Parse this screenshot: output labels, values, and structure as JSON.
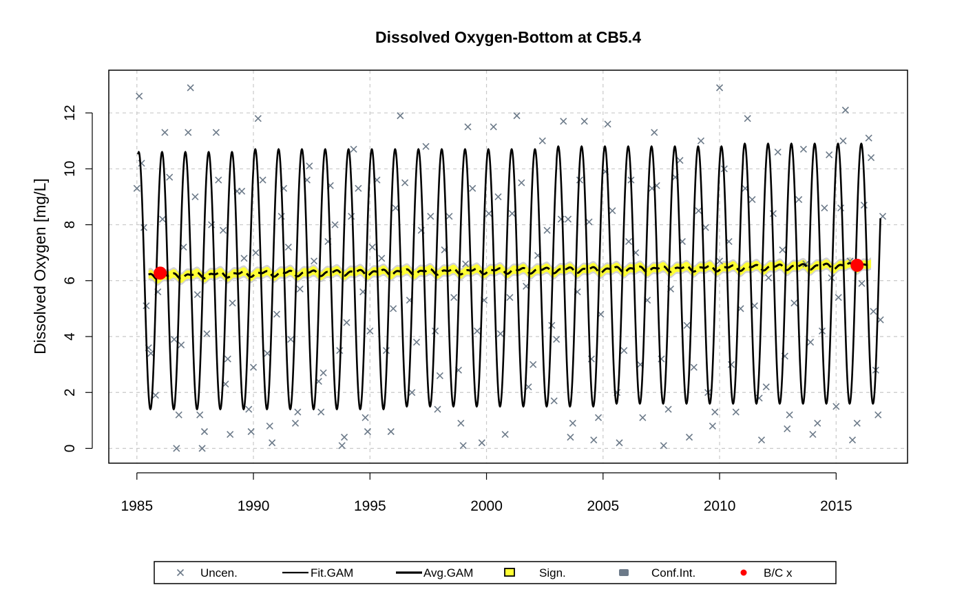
{
  "chart_data": {
    "type": "line",
    "title": "Dissolved Oxygen-Bottom at CB5.4",
    "xlabel": "",
    "ylabel": "Dissolved Oxygen [mg/L]",
    "xlim": [
      1985,
      2017
    ],
    "ylim": [
      0,
      13
    ],
    "x_ticks": [
      "1985",
      "1990",
      "1995",
      "2000",
      "2005",
      "2010",
      "2015"
    ],
    "y_ticks": [
      "0",
      "2",
      "4",
      "6",
      "8",
      "10",
      "12"
    ],
    "grid": true,
    "legend_position": "bottom",
    "colors": {
      "observations": "#6c7a89",
      "fit": "#000000",
      "significance": "#ffff33",
      "confidence": "#c8c8c8",
      "baseline_current": "#ff0000",
      "grid": "#c8c8c8"
    },
    "legend": [
      {
        "label": "Uncen.",
        "symbol": "x"
      },
      {
        "label": "Fit.GAM",
        "symbol": "line"
      },
      {
        "label": "Avg.GAM",
        "symbol": "thickline"
      },
      {
        "label": "Sign.",
        "symbol": "yellow-box"
      },
      {
        "label": "Conf.Int.",
        "symbol": "gray-box"
      },
      {
        "label": "B/C x",
        "symbol": "red-dot"
      }
    ],
    "series": [
      {
        "name": "Fit.GAM",
        "kind": "seasonal-curve",
        "x_start": 1985.05,
        "x_end": 2016.9,
        "peak_values": [
          10.6,
          10.6,
          10.6,
          10.6,
          10.6,
          10.7,
          10.7,
          10.7,
          10.7,
          10.7,
          10.7,
          10.7,
          10.7,
          10.7,
          10.7,
          10.7,
          10.7,
          10.7,
          10.8,
          10.8,
          10.8,
          10.8,
          10.8,
          10.8,
          10.8,
          10.8,
          10.9,
          10.9,
          10.9,
          10.9,
          10.9,
          10.9
        ],
        "trough_values": [
          1.4,
          1.4,
          1.4,
          1.4,
          1.4,
          1.4,
          1.4,
          1.4,
          1.4,
          1.4,
          1.4,
          1.5,
          1.5,
          1.5,
          1.5,
          1.5,
          1.5,
          1.5,
          1.5,
          1.5,
          1.6,
          1.6,
          1.6,
          1.6,
          1.6,
          1.6,
          1.6,
          1.6,
          1.6,
          1.6,
          1.6,
          1.6
        ]
      },
      {
        "name": "Avg.GAM",
        "kind": "trend",
        "x": [
          1985.5,
          1990,
          1995,
          2000,
          2005,
          2010,
          2016.5
        ],
        "y": [
          6.15,
          6.25,
          6.3,
          6.35,
          6.4,
          6.45,
          6.55
        ]
      }
    ],
    "baseline_current": [
      {
        "x": 1986.0,
        "y": 6.27
      },
      {
        "x": 2015.9,
        "y": 6.55
      }
    ],
    "observations": [
      [
        1985.1,
        12.6
      ],
      [
        1985.0,
        9.3
      ],
      [
        1985.2,
        10.2
      ],
      [
        1985.3,
        7.9
      ],
      [
        1985.4,
        5.1
      ],
      [
        1985.5,
        3.6
      ],
      [
        1985.6,
        3.4
      ],
      [
        1985.8,
        1.9
      ],
      [
        1985.9,
        5.6
      ],
      [
        1986.1,
        8.2
      ],
      [
        1986.2,
        11.3
      ],
      [
        1986.4,
        9.7
      ],
      [
        1986.6,
        3.9
      ],
      [
        1986.7,
        0.0
      ],
      [
        1986.8,
        1.2
      ],
      [
        1986.9,
        3.7
      ],
      [
        1987.0,
        7.2
      ],
      [
        1987.2,
        11.3
      ],
      [
        1987.3,
        12.9
      ],
      [
        1987.5,
        9.0
      ],
      [
        1987.6,
        5.5
      ],
      [
        1987.7,
        1.2
      ],
      [
        1987.8,
        0.0
      ],
      [
        1987.9,
        0.6
      ],
      [
        1988.0,
        4.1
      ],
      [
        1988.2,
        8.0
      ],
      [
        1988.4,
        11.3
      ],
      [
        1988.5,
        9.6
      ],
      [
        1988.7,
        7.8
      ],
      [
        1988.8,
        2.3
      ],
      [
        1988.9,
        3.2
      ],
      [
        1989.0,
        0.5
      ],
      [
        1989.1,
        5.2
      ],
      [
        1989.3,
        9.2
      ],
      [
        1989.5,
        9.2
      ],
      [
        1989.6,
        6.8
      ],
      [
        1989.8,
        1.4
      ],
      [
        1989.9,
        0.6
      ],
      [
        1990.0,
        2.9
      ],
      [
        1990.1,
        7.0
      ],
      [
        1990.2,
        11.8
      ],
      [
        1990.4,
        9.6
      ],
      [
        1990.6,
        3.4
      ],
      [
        1990.7,
        0.8
      ],
      [
        1990.8,
        0.2
      ],
      [
        1991.0,
        4.8
      ],
      [
        1991.2,
        8.3
      ],
      [
        1991.3,
        9.3
      ],
      [
        1991.5,
        7.2
      ],
      [
        1991.6,
        3.9
      ],
      [
        1991.8,
        0.9
      ],
      [
        1991.9,
        1.3
      ],
      [
        1992.0,
        5.7
      ],
      [
        1992.3,
        9.6
      ],
      [
        1992.4,
        10.1
      ],
      [
        1992.6,
        6.7
      ],
      [
        1992.8,
        2.4
      ],
      [
        1992.9,
        1.3
      ],
      [
        1993.0,
        2.7
      ],
      [
        1993.2,
        7.4
      ],
      [
        1993.3,
        9.4
      ],
      [
        1993.5,
        8.0
      ],
      [
        1993.7,
        3.5
      ],
      [
        1993.8,
        0.1
      ],
      [
        1993.9,
        0.4
      ],
      [
        1994.0,
        4.5
      ],
      [
        1994.2,
        8.3
      ],
      [
        1994.3,
        10.7
      ],
      [
        1994.5,
        9.3
      ],
      [
        1994.7,
        5.6
      ],
      [
        1994.8,
        1.1
      ],
      [
        1994.9,
        0.6
      ],
      [
        1995.0,
        4.2
      ],
      [
        1995.1,
        7.2
      ],
      [
        1995.3,
        9.6
      ],
      [
        1995.5,
        6.8
      ],
      [
        1995.7,
        3.5
      ],
      [
        1995.9,
        0.6
      ],
      [
        1996.0,
        5.0
      ],
      [
        1996.1,
        8.6
      ],
      [
        1996.3,
        11.9
      ],
      [
        1996.5,
        9.5
      ],
      [
        1996.7,
        5.3
      ],
      [
        1996.8,
        2.0
      ],
      [
        1997.0,
        3.8
      ],
      [
        1997.2,
        7.8
      ],
      [
        1997.4,
        10.8
      ],
      [
        1997.6,
        8.3
      ],
      [
        1997.8,
        4.2
      ],
      [
        1997.9,
        1.4
      ],
      [
        1998.0,
        2.6
      ],
      [
        1998.2,
        7.1
      ],
      [
        1998.4,
        8.3
      ],
      [
        1998.6,
        5.4
      ],
      [
        1998.8,
        2.8
      ],
      [
        1998.9,
        0.9
      ],
      [
        1999.0,
        0.1
      ],
      [
        1999.1,
        6.6
      ],
      [
        1999.2,
        11.5
      ],
      [
        1999.4,
        9.3
      ],
      [
        1999.6,
        4.2
      ],
      [
        1999.8,
        0.2
      ],
      [
        1999.9,
        5.3
      ],
      [
        2000.1,
        8.4
      ],
      [
        2000.3,
        11.5
      ],
      [
        2000.5,
        9.0
      ],
      [
        2000.6,
        4.1
      ],
      [
        2000.8,
        0.5
      ],
      [
        2001.0,
        5.4
      ],
      [
        2001.1,
        8.4
      ],
      [
        2001.3,
        11.9
      ],
      [
        2001.5,
        9.5
      ],
      [
        2001.7,
        5.8
      ],
      [
        2001.8,
        2.2
      ],
      [
        2002.0,
        3.0
      ],
      [
        2002.2,
        6.9
      ],
      [
        2002.4,
        11.0
      ],
      [
        2002.6,
        7.8
      ],
      [
        2002.8,
        4.4
      ],
      [
        2002.9,
        1.7
      ],
      [
        2003.0,
        3.9
      ],
      [
        2003.2,
        8.2
      ],
      [
        2003.3,
        11.7
      ],
      [
        2003.5,
        8.2
      ],
      [
        2003.6,
        0.4
      ],
      [
        2003.7,
        0.9
      ],
      [
        2003.9,
        5.6
      ],
      [
        2004.0,
        9.6
      ],
      [
        2004.2,
        11.7
      ],
      [
        2004.4,
        8.1
      ],
      [
        2004.5,
        3.2
      ],
      [
        2004.6,
        0.3
      ],
      [
        2004.8,
        1.1
      ],
      [
        2004.9,
        4.8
      ],
      [
        2005.1,
        9.9
      ],
      [
        2005.2,
        11.6
      ],
      [
        2005.4,
        8.5
      ],
      [
        2005.6,
        2.0
      ],
      [
        2005.7,
        0.2
      ],
      [
        2005.9,
        3.5
      ],
      [
        2006.1,
        7.4
      ],
      [
        2006.2,
        9.6
      ],
      [
        2006.4,
        7.0
      ],
      [
        2006.6,
        3.0
      ],
      [
        2006.7,
        1.1
      ],
      [
        2006.9,
        5.3
      ],
      [
        2007.1,
        9.3
      ],
      [
        2007.2,
        11.3
      ],
      [
        2007.3,
        9.4
      ],
      [
        2007.5,
        3.2
      ],
      [
        2007.6,
        0.1
      ],
      [
        2007.8,
        1.4
      ],
      [
        2007.9,
        5.7
      ],
      [
        2008.1,
        9.7
      ],
      [
        2008.3,
        10.3
      ],
      [
        2008.4,
        7.4
      ],
      [
        2008.6,
        4.4
      ],
      [
        2008.7,
        0.4
      ],
      [
        2008.9,
        2.9
      ],
      [
        2009.1,
        8.5
      ],
      [
        2009.2,
        11.0
      ],
      [
        2009.4,
        7.9
      ],
      [
        2009.5,
        2.0
      ],
      [
        2009.7,
        0.8
      ],
      [
        2009.8,
        1.3
      ],
      [
        2010.0,
        6.7
      ],
      [
        2010.0,
        12.9
      ],
      [
        2010.2,
        10.0
      ],
      [
        2010.4,
        7.4
      ],
      [
        2010.5,
        3.0
      ],
      [
        2010.7,
        1.3
      ],
      [
        2010.9,
        5.0
      ],
      [
        2011.1,
        9.3
      ],
      [
        2011.2,
        11.8
      ],
      [
        2011.4,
        8.9
      ],
      [
        2011.5,
        5.1
      ],
      [
        2011.7,
        1.8
      ],
      [
        2011.8,
        0.3
      ],
      [
        2012.0,
        2.2
      ],
      [
        2012.1,
        6.1
      ],
      [
        2012.3,
        8.4
      ],
      [
        2012.5,
        10.6
      ],
      [
        2012.7,
        7.1
      ],
      [
        2012.8,
        3.3
      ],
      [
        2012.9,
        0.7
      ],
      [
        2013.0,
        1.2
      ],
      [
        2013.2,
        5.2
      ],
      [
        2013.4,
        8.9
      ],
      [
        2013.6,
        10.7
      ],
      [
        2013.7,
        6.6
      ],
      [
        2013.9,
        3.8
      ],
      [
        2014.0,
        0.5
      ],
      [
        2014.2,
        0.9
      ],
      [
        2014.4,
        4.2
      ],
      [
        2014.5,
        8.6
      ],
      [
        2014.7,
        10.5
      ],
      [
        2014.8,
        6.1
      ],
      [
        2015.0,
        1.5
      ],
      [
        2015.1,
        5.4
      ],
      [
        2015.2,
        8.6
      ],
      [
        2015.3,
        11.0
      ],
      [
        2015.4,
        12.1
      ],
      [
        2015.6,
        6.7
      ],
      [
        2015.7,
        0.3
      ],
      [
        2015.9,
        0.9
      ],
      [
        2016.1,
        5.9
      ],
      [
        2016.2,
        8.7
      ],
      [
        2016.4,
        11.1
      ],
      [
        2016.5,
        10.4
      ],
      [
        2016.6,
        4.9
      ],
      [
        2016.7,
        2.8
      ],
      [
        2016.8,
        1.2
      ],
      [
        2016.9,
        4.6
      ],
      [
        2017.0,
        8.3
      ]
    ]
  }
}
